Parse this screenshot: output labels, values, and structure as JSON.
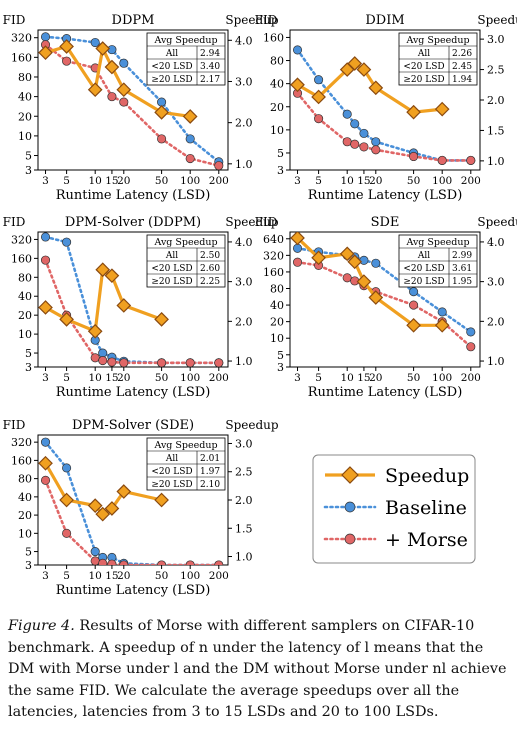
{
  "figure": {
    "caption_label": "Figure 4.",
    "caption_text": "Results of Morse with different samplers on CIFAR-10 benchmark. A speedup of n under the latency of l means that the DM with Morse under l and the DM without Morse under nl achieve the same FID. We calculate the average speedups over all the latencies, latencies from 3 to 15 LSDs and 20 to 100 LSDs."
  },
  "legend": {
    "items": [
      {
        "label": "Speedup",
        "color": "#f0a020",
        "marker": "diamond"
      },
      {
        "label": "Baseline",
        "color": "#4a90d9",
        "marker": "circle"
      },
      {
        "label": "+ Morse",
        "color": "#e06666",
        "marker": "circle"
      }
    ]
  },
  "chart_data": [
    {
      "type": "line",
      "title": "DDPM",
      "ylabel_left": "FID",
      "ylabel_right": "Speedup",
      "xlabel": "Runtime Latency (LSD)",
      "x_ticks": [
        3,
        5,
        10,
        15,
        20,
        50,
        100,
        200
      ],
      "y_ticks": [
        3,
        5,
        10,
        20,
        40,
        80,
        160,
        320
      ],
      "y2_ticks": [
        "1.0",
        "2.0",
        "3.0",
        "4.0"
      ],
      "ylim": [
        3,
        420
      ],
      "y2lim": [
        0.85,
        4.25
      ],
      "table": {
        "header": "Avg Speedup",
        "rows": [
          [
            "All",
            "2.94"
          ],
          [
            "<20 LSD",
            "3.40"
          ],
          [
            "≥20 LSD",
            "2.17"
          ]
        ]
      },
      "baseline": {
        "x": [
          3,
          5,
          10,
          15,
          20,
          50,
          100,
          200
        ],
        "y": [
          330,
          310,
          270,
          210,
          130,
          33,
          9,
          4
        ]
      },
      "morse": {
        "x": [
          3,
          5,
          10,
          15,
          20,
          50,
          100,
          200
        ],
        "y": [
          250,
          140,
          110,
          40,
          33,
          9,
          4.5,
          3.5
        ]
      },
      "speedup": {
        "x": [
          3,
          5,
          10,
          12,
          15,
          20,
          50,
          100
        ],
        "y": [
          3.7,
          3.85,
          2.8,
          3.8,
          3.35,
          2.8,
          2.25,
          2.15
        ]
      }
    },
    {
      "type": "line",
      "title": "DDIM",
      "ylabel_left": "FID",
      "ylabel_right": "Speedup",
      "xlabel": "Runtime Latency (LSD)",
      "x_ticks": [
        3,
        5,
        10,
        15,
        20,
        50,
        100,
        200
      ],
      "y_ticks": [
        3,
        5,
        10,
        20,
        40,
        80,
        160
      ],
      "y2_ticks": [
        "1.0",
        "1.5",
        "2.0",
        "2.5",
        "3.0"
      ],
      "ylim": [
        3,
        200
      ],
      "y2lim": [
        0.85,
        3.15
      ],
      "table": {
        "header": "Avg Speedup",
        "rows": [
          [
            "All",
            "2.26"
          ],
          [
            "<20 LSD",
            "2.45"
          ],
          [
            "≥20 LSD",
            "1.94"
          ]
        ]
      },
      "baseline": {
        "x": [
          3,
          5,
          10,
          12,
          15,
          20,
          50,
          100,
          200
        ],
        "y": [
          110,
          45,
          16,
          12,
          9,
          7,
          5,
          4,
          4
        ]
      },
      "morse": {
        "x": [
          3,
          5,
          10,
          12,
          15,
          20,
          50,
          100,
          200
        ],
        "y": [
          30,
          14,
          7,
          6.5,
          6,
          5.5,
          4.5,
          4,
          4
        ]
      },
      "speedup": {
        "x": [
          3,
          5,
          10,
          12,
          15,
          20,
          50,
          100
        ],
        "y": [
          2.25,
          2.05,
          2.5,
          2.6,
          2.5,
          2.2,
          1.8,
          1.85
        ]
      }
    },
    {
      "type": "line",
      "title": "DPM-Solver (DDPM)",
      "ylabel_left": "FID",
      "ylabel_right": "Speedup",
      "xlabel": "Runtime Latency (LSD)",
      "x_ticks": [
        3,
        5,
        10,
        15,
        20,
        50,
        100,
        200
      ],
      "y_ticks": [
        3,
        5,
        10,
        20,
        40,
        80,
        160,
        320
      ],
      "y2_ticks": [
        "1.0",
        "2.0",
        "3.0",
        "4.0"
      ],
      "ylim": [
        3,
        420
      ],
      "y2lim": [
        0.85,
        4.25
      ],
      "table": {
        "header": "Avg Speedup",
        "rows": [
          [
            "All",
            "2.50"
          ],
          [
            "<20 LSD",
            "2.60"
          ],
          [
            "≥20 LSD",
            "2.25"
          ]
        ]
      },
      "baseline": {
        "x": [
          3,
          5,
          10,
          12,
          15,
          20,
          50,
          100,
          200
        ],
        "y": [
          350,
          290,
          8,
          5,
          4.3,
          3.7,
          3.5,
          3.5,
          3.5
        ]
      },
      "morse": {
        "x": [
          3,
          5,
          10,
          12,
          15,
          20,
          50,
          100,
          200
        ],
        "y": [
          150,
          20,
          4.2,
          3.8,
          3.6,
          3.5,
          3.5,
          3.5,
          3.5
        ]
      },
      "speedup": {
        "x": [
          3,
          5,
          10,
          12,
          15,
          20,
          50
        ],
        "y": [
          2.35,
          2.05,
          1.75,
          3.3,
          3.15,
          2.4,
          2.05
        ]
      }
    },
    {
      "type": "line",
      "title": "SDE",
      "ylabel_left": "FID",
      "ylabel_right": "Speedup",
      "xlabel": "Runtime Latency (LSD)",
      "x_ticks": [
        3,
        5,
        10,
        15,
        20,
        50,
        100,
        200
      ],
      "y_ticks": [
        3,
        5,
        10,
        20,
        40,
        80,
        160,
        320,
        640
      ],
      "y2_ticks": [
        "1.0",
        "2.0",
        "3.0",
        "4.0"
      ],
      "ylim": [
        3,
        850
      ],
      "y2lim": [
        0.85,
        4.25
      ],
      "table": {
        "header": "Avg Speedup",
        "rows": [
          [
            "All",
            "2.99"
          ],
          [
            "<20 LSD",
            "3.61"
          ],
          [
            "≥20 LSD",
            "1.95"
          ]
        ]
      },
      "baseline": {
        "x": [
          3,
          5,
          10,
          12,
          15,
          20,
          50,
          100,
          200
        ],
        "y": [
          430,
          370,
          320,
          300,
          260,
          230,
          70,
          30,
          13
        ]
      },
      "morse": {
        "x": [
          3,
          5,
          10,
          12,
          15,
          20,
          50,
          100,
          200
        ],
        "y": [
          240,
          210,
          125,
          110,
          90,
          70,
          40,
          20,
          7
        ]
      },
      "speedup": {
        "x": [
          3,
          5,
          10,
          12,
          15,
          20,
          50,
          100
        ],
        "y": [
          4.1,
          3.6,
          3.7,
          3.5,
          3.0,
          2.6,
          1.9,
          1.9
        ]
      }
    },
    {
      "type": "line",
      "title": "DPM-Solver (SDE)",
      "ylabel_left": "FID",
      "ylabel_right": "Speedup",
      "xlabel": "Runtime Latency (LSD)",
      "x_ticks": [
        3,
        5,
        10,
        15,
        20,
        50,
        100,
        200
      ],
      "y_ticks": [
        3,
        5,
        10,
        20,
        40,
        80,
        160,
        320
      ],
      "y2_ticks": [
        "1.0",
        "1.5",
        "2.0",
        "2.5",
        "3.0"
      ],
      "ylim": [
        3,
        420
      ],
      "y2lim": [
        0.85,
        3.15
      ],
      "table": {
        "header": "Avg Speedup",
        "rows": [
          [
            "All",
            "2.01"
          ],
          [
            "<20 LSD",
            "1.97"
          ],
          [
            "≥20 LSD",
            "2.10"
          ]
        ]
      },
      "baseline": {
        "x": [
          3,
          5,
          10,
          12,
          15,
          20,
          50,
          100,
          200
        ],
        "y": [
          320,
          120,
          5,
          4,
          4,
          3.2,
          3,
          3,
          3
        ]
      },
      "morse": {
        "x": [
          3,
          5,
          10,
          12,
          15,
          20,
          50,
          100,
          200
        ],
        "y": [
          75,
          10,
          3.5,
          3.2,
          3.1,
          3,
          3,
          3,
          3
        ]
      },
      "speedup": {
        "x": [
          3,
          5,
          10,
          12,
          15,
          20,
          50
        ],
        "y": [
          2.65,
          2.0,
          1.9,
          1.75,
          1.85,
          2.15,
          2.0
        ]
      }
    }
  ]
}
